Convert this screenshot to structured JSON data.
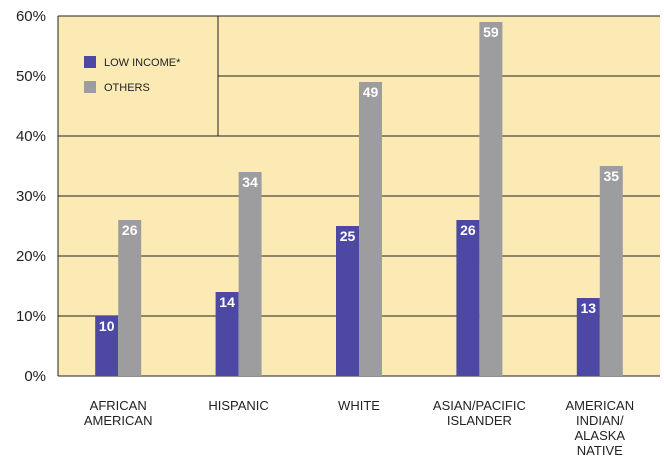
{
  "colors": {
    "plot_background": "#fbeab3",
    "low_income": "#4d48a3",
    "others": "#9d9d9f",
    "gridline": "#222222"
  },
  "chart_data": {
    "type": "bar",
    "categories": [
      [
        "AFRICAN",
        "AMERICAN"
      ],
      [
        "HISPANIC"
      ],
      [
        "WHITE"
      ],
      [
        "ASIAN/PACIFIC",
        "ISLANDER"
      ],
      [
        "AMERICAN",
        "INDIAN/",
        "ALASKA",
        "NATIVE"
      ]
    ],
    "series": [
      {
        "name": "LOW INCOME*",
        "values": [
          10,
          14,
          25,
          26,
          13
        ],
        "color": "#4d48a3"
      },
      {
        "name": "OTHERS",
        "values": [
          26,
          34,
          49,
          59,
          35
        ],
        "color": "#9d9d9f"
      }
    ],
    "y_ticks": [
      "0%",
      "10%",
      "20%",
      "30%",
      "40%",
      "50%",
      "60%"
    ],
    "ylim": [
      0,
      60
    ],
    "grid": true,
    "legend_position": "top-left"
  }
}
